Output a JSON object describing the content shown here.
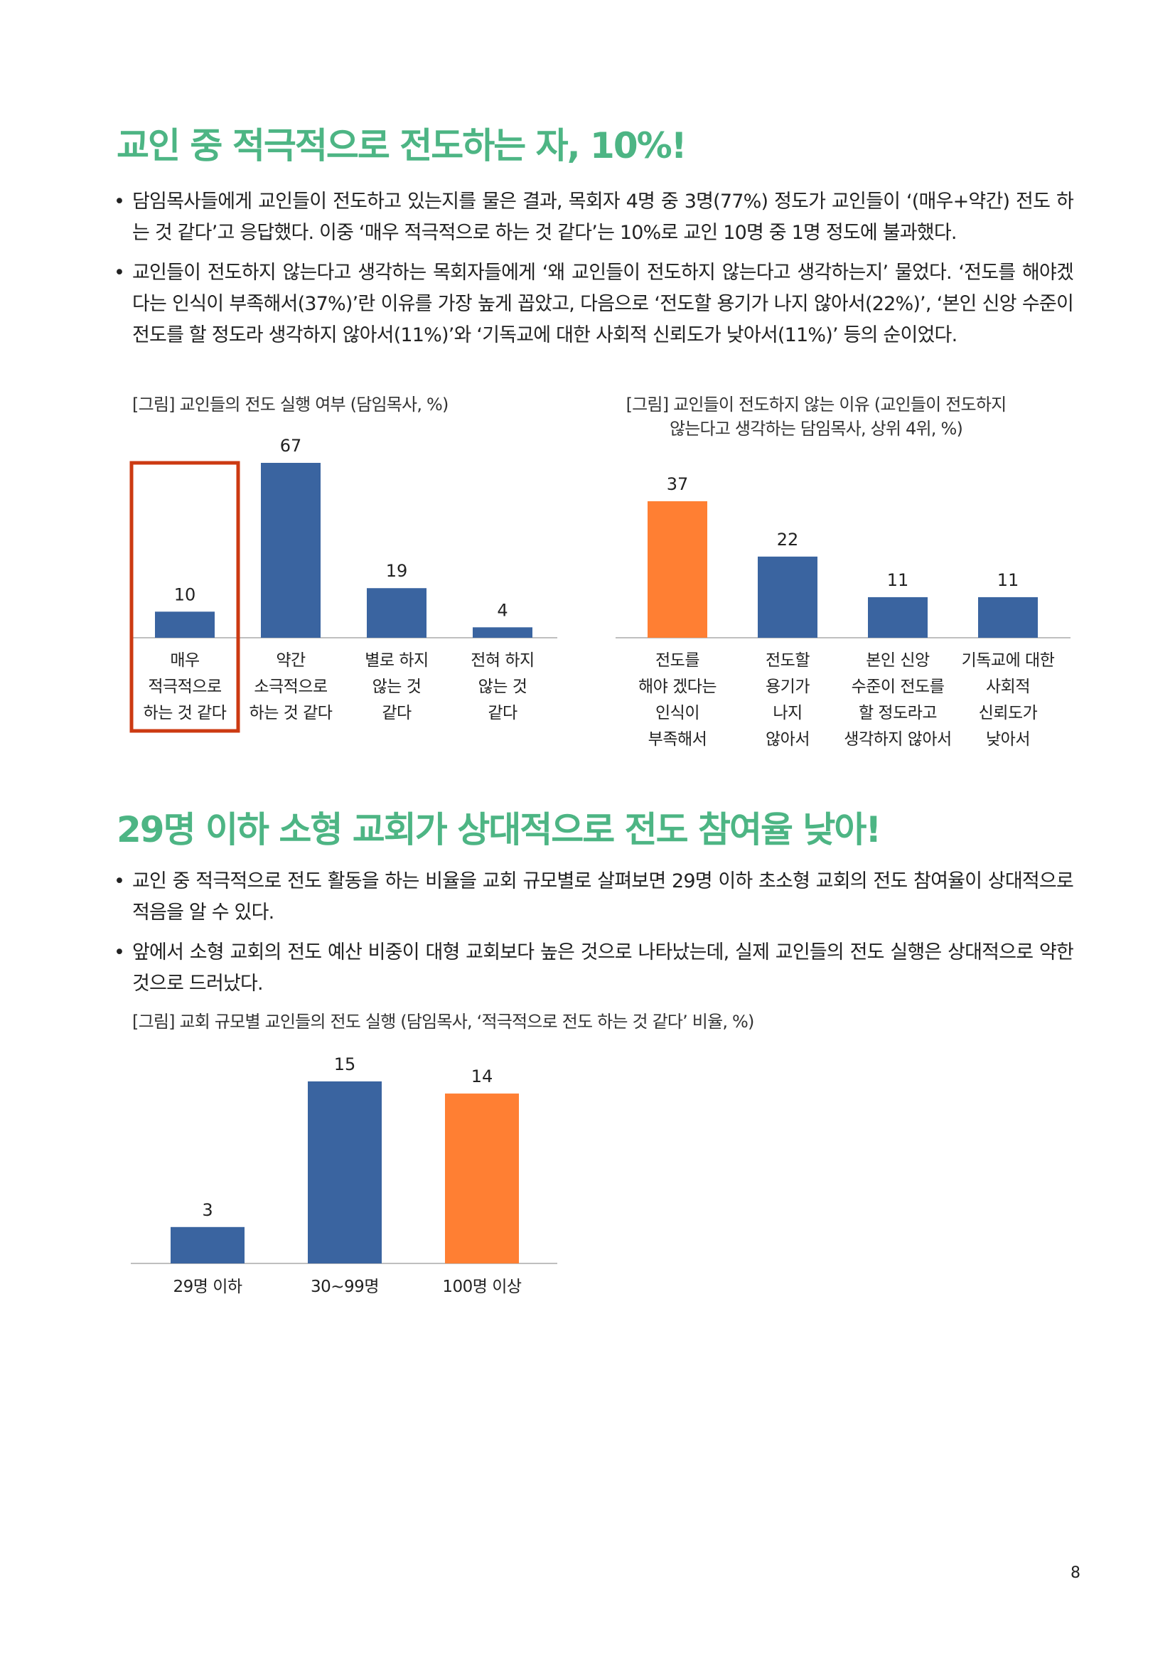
{
  "section1": {
    "heading": "교인 중 적극적으로 전도하는 자, 10%!",
    "bullets": [
      "담임목사들에게 교인들이 전도하고 있는지를 물은 결과, 목회자 4명 중 3명(77%) 정도가 교인들이 ‘(매우+약간) 전도 하는 것 같다’고 응답했다. 이중 ‘매우 적극적으로 하는 것 같다’는 10%로 교인 10명 중 1명 정도에 불과했다.",
      "교인들이 전도하지 않는다고 생각하는 목회자들에게 ‘왜 교인들이 전도하지 않는다고 생각하는지’ 물었다. ‘전도를 해야겠다는 인식이 부족해서(37%)’란 이유를 가장 높게 꼽았고, 다음으로 ‘전도할 용기가 나지 않아서(22%)’, ‘본인 신앙 수준이 전도를 할 정도라 생각하지 않아서(11%)’와 ‘기독교에 대한 사회적 신뢰도가 낮아서(11%)’ 등의 순이었다."
    ]
  },
  "section2": {
    "heading": "29명 이하 소형 교회가 상대적으로 전도 참여율 낮아!",
    "bullets": [
      "교인 중 적극적으로 전도 활동을 하는 비율을 교회 규모별로 살펴보면 29명 이하 초소형 교회의 전도 참여율이 상대적으로 적음을 알 수 있다.",
      "앞에서 소형 교회의 전도 예산 비중이 대형 교회보다 높은 것으로 나타났는데, 실제 교인들의 전도 실행은 상대적으로 약한 것으로 드러났다."
    ]
  },
  "colors": {
    "heading": "#4db584",
    "bar_blue": "#3a64a0",
    "bar_orange": "#ff7f33",
    "highlight_box": "#cc3a12",
    "axis": "#bfbfbf"
  },
  "chart_data": [
    {
      "type": "bar",
      "title": "[그림] 교인들의 전도 실행 여부 (담임목사, %)",
      "categories": [
        [
          "매우",
          "적극적으로",
          "하는 것 같다"
        ],
        [
          "약간",
          "소극적으로",
          "하는 것 같다"
        ],
        [
          "별로 하지",
          "않는 것",
          "같다"
        ],
        [
          "전혀 하지",
          "않는 것",
          "같다"
        ]
      ],
      "values": [
        10,
        67,
        19,
        4
      ],
      "data_labels": [
        "10",
        "67",
        "19",
        "4"
      ],
      "bar_colors": [
        "#3a64a0",
        "#3a64a0",
        "#3a64a0",
        "#3a64a0"
      ],
      "highlight_index": 0,
      "ylim": [
        0,
        67
      ]
    },
    {
      "type": "bar",
      "title": [
        "[그림] 교인들이 전도하지 않는 이유 (교인들이 전도하지",
        "않는다고 생각하는 담임목사, 상위 4위, %)"
      ],
      "categories": [
        [
          "전도를",
          "해야 겠다는",
          "인식이",
          "부족해서"
        ],
        [
          "전도할",
          "용기가",
          "나지",
          "않아서"
        ],
        [
          "본인 신앙",
          "수준이 전도를",
          "할 정도라고",
          "생각하지 않아서"
        ],
        [
          "기독교에 대한",
          "사회적",
          "신뢰도가",
          "낮아서"
        ]
      ],
      "values": [
        37,
        22,
        11,
        11
      ],
      "data_labels": [
        "37",
        "22",
        "11",
        "11"
      ],
      "bar_colors": [
        "#ff7f33",
        "#3a64a0",
        "#3a64a0",
        "#3a64a0"
      ],
      "ylim": [
        0,
        37
      ]
    },
    {
      "type": "bar",
      "title": "[그림] 교회 규모별 교인들의 전도 실행 (담임목사, ‘적극적으로 전도 하는 것 같다’ 비율, %)",
      "categories": [
        [
          "29명 이하"
        ],
        [
          "30~99명"
        ],
        [
          "100명 이상"
        ]
      ],
      "values": [
        3,
        15,
        14
      ],
      "data_labels": [
        "3",
        "15",
        "14"
      ],
      "bar_colors": [
        "#3a64a0",
        "#3a64a0",
        "#ff7f33"
      ],
      "ylim": [
        0,
        15
      ]
    }
  ],
  "page_number": "8"
}
